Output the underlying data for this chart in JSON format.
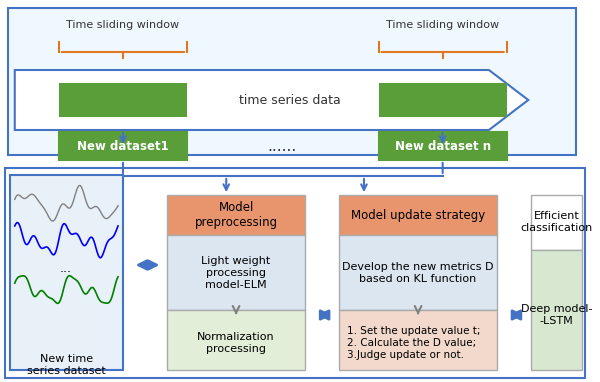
{
  "fig_width": 6.0,
  "fig_height": 3.82,
  "dpi": 100,
  "bg_color": "#ffffff",
  "top_section": {
    "border_color": "#4472c4",
    "bg_color": "#ffffff",
    "arrow_color": "#4472c4",
    "green_box_color": "#5a9e3a",
    "green_box_text_color": "#ffffff",
    "text_color": "#000000",
    "bracket_color": "#e07820",
    "label1": "Time sliding window",
    "label2": "Time sliding window",
    "center_text": "time series data",
    "dataset1": "New dataset1",
    "dataset_dots": "......",
    "datasetn": "New dataset n"
  },
  "bottom_section": {
    "border_color": "#4472c4",
    "box1": {
      "border_color": "#4472c4",
      "bg_color": "#e8f0f8",
      "label": "New time\nseries dataset",
      "has_plot": true
    },
    "box2": {
      "header_color": "#e8956d",
      "body_top_color": "#dce6f1",
      "body_bot_color": "#e2eed8",
      "border_color": "#808080",
      "header_text": "Model\npreprocessing",
      "top_text": "Light weight\nprocessing\nmodel-ELM",
      "bot_text": "Normalization\nprocessing"
    },
    "box3": {
      "header_color": "#e8956d",
      "body_top_color": "#dce6f1",
      "body_bot_color": "#f2d9cc",
      "border_color": "#808080",
      "header_text": "Model update strategy",
      "top_text": "Develop the new metrics D\nbased on KL function",
      "bot_text": "1. Set the update value t;\n2. Calculate the D value;\n3.Judge update or not."
    },
    "box4": {
      "header_bg": "#f5f5dc",
      "body_color": "#d8e8d0",
      "border_color": "#808080",
      "header_text": "Efficient\nclassification",
      "body_text": "Deep model-\n-LSTM"
    },
    "arrow_color": "#4472c4",
    "double_arrow_color": "#4472c4"
  }
}
